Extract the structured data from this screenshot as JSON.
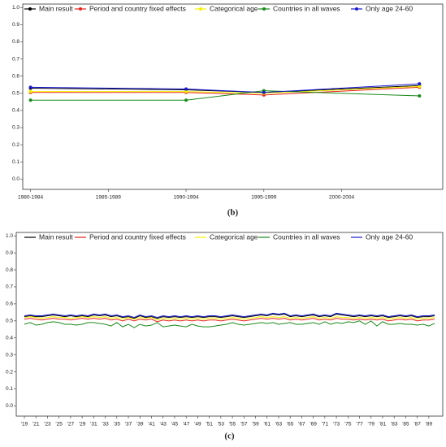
{
  "chart_data": [
    {
      "type": "line",
      "markers": true,
      "caption": "(b)",
      "x": [
        0,
        2,
        3,
        5
      ],
      "xlim": [
        -0.1,
        5.3
      ],
      "xticks": [
        {
          "value": 0,
          "label": "1980-1984"
        },
        {
          "value": 1,
          "label": "1985-1989"
        },
        {
          "value": 2,
          "label": "1990-1994"
        },
        {
          "value": 3,
          "label": "1995-1999"
        },
        {
          "value": 4,
          "label": "2000-2004"
        }
      ],
      "ylim": [
        -0.06,
        1.02
      ],
      "yticks": [
        {
          "value": 0,
          "label": "0.0"
        },
        0.1,
        0.2,
        0.3,
        0.4,
        0.5,
        0.6,
        0.7,
        0.8,
        0.9,
        {
          "value": 1,
          "label": "1.0"
        }
      ],
      "series": [
        {
          "name": "Main result",
          "color": "#000000",
          "values": [
            0.53,
            0.52,
            0.505,
            0.545
          ]
        },
        {
          "name": "Period and country fixed effects",
          "color": "#e8221c",
          "values": [
            0.505,
            0.505,
            0.49,
            0.535
          ]
        },
        {
          "name": "Categorical age",
          "color": "#f2f200",
          "values": [
            0.51,
            0.51,
            0.5,
            0.54
          ]
        },
        {
          "name": "Countries in all waves",
          "color": "#1a8a1a",
          "values": [
            0.46,
            0.46,
            0.515,
            0.485
          ]
        },
        {
          "name": "Only age 24-60",
          "color": "#1a1ad0",
          "values": [
            0.535,
            0.525,
            0.505,
            0.555
          ]
        }
      ]
    },
    {
      "type": "line",
      "markers": false,
      "caption": "(c)",
      "categories": [
        "'19",
        null,
        "'21",
        null,
        "'23",
        null,
        "'25",
        null,
        "'27",
        null,
        "'29",
        null,
        "'31",
        null,
        "'33",
        null,
        "'35",
        null,
        "'37",
        null,
        "'39",
        null,
        "'41",
        null,
        "'43",
        null,
        "'45",
        null,
        "'47",
        null,
        "'49",
        null,
        "'51",
        null,
        "'53",
        null,
        "'55",
        null,
        "'57",
        null,
        "'59",
        null,
        "'61",
        null,
        "'63",
        null,
        "'65",
        null,
        "'67",
        null,
        "'69",
        null,
        "'71",
        null,
        "'73",
        null,
        "'75",
        null,
        "'77",
        null,
        "'79",
        null,
        "'81",
        null,
        "'83",
        null,
        "'85",
        null,
        "'87",
        null,
        "'89",
        null
      ],
      "ylim": [
        -0.06,
        1.02
      ],
      "yticks": [
        {
          "value": 0,
          "label": "0.0"
        },
        0.1,
        0.2,
        0.3,
        0.4,
        0.5,
        0.6,
        0.7,
        0.8,
        0.9,
        {
          "value": 1,
          "label": "1.0"
        }
      ],
      "series": [
        {
          "name": "Main result",
          "color": "#000000",
          "values": [
            0.525,
            0.53,
            0.525,
            0.525,
            0.53,
            0.535,
            0.53,
            0.525,
            0.53,
            0.525,
            0.53,
            0.525,
            0.535,
            0.53,
            0.535,
            0.525,
            0.53,
            0.52,
            0.525,
            0.515,
            0.53,
            0.52,
            0.525,
            0.515,
            0.525,
            0.52,
            0.525,
            0.52,
            0.525,
            0.52,
            0.525,
            0.52,
            0.525,
            0.525,
            0.52,
            0.525,
            0.53,
            0.525,
            0.52,
            0.525,
            0.53,
            0.535,
            0.53,
            0.54,
            0.535,
            0.54,
            0.525,
            0.53,
            0.525,
            0.53,
            0.535,
            0.525,
            0.53,
            0.525,
            0.54,
            0.535,
            0.53,
            0.525,
            0.53,
            0.525,
            0.53,
            0.525,
            0.53,
            0.52,
            0.525,
            0.53,
            0.525,
            0.53,
            0.52,
            0.525,
            0.525,
            0.53
          ]
        },
        {
          "name": "Period and country fixed effects",
          "color": "#e8221c",
          "values": [
            0.51,
            0.515,
            0.51,
            0.505,
            0.51,
            0.515,
            0.51,
            0.51,
            0.505,
            0.51,
            0.515,
            0.51,
            0.515,
            0.51,
            0.515,
            0.505,
            0.51,
            0.5,
            0.51,
            0.5,
            0.51,
            0.505,
            0.51,
            0.495,
            0.505,
            0.5,
            0.505,
            0.5,
            0.505,
            0.5,
            0.505,
            0.5,
            0.505,
            0.505,
            0.5,
            0.505,
            0.51,
            0.505,
            0.5,
            0.505,
            0.51,
            0.515,
            0.51,
            0.515,
            0.51,
            0.515,
            0.505,
            0.51,
            0.505,
            0.51,
            0.515,
            0.505,
            0.51,
            0.505,
            0.515,
            0.51,
            0.51,
            0.505,
            0.51,
            0.505,
            0.51,
            0.505,
            0.51,
            0.5,
            0.505,
            0.51,
            0.505,
            0.51,
            0.5,
            0.505,
            0.505,
            0.51
          ]
        },
        {
          "name": "Categorical age",
          "color": "#f2f200",
          "values": [
            0.52,
            0.525,
            0.52,
            0.515,
            0.52,
            0.525,
            0.52,
            0.52,
            0.515,
            0.52,
            0.525,
            0.52,
            0.525,
            0.52,
            0.525,
            0.515,
            0.52,
            0.51,
            0.52,
            0.51,
            0.52,
            0.515,
            0.52,
            0.505,
            0.515,
            0.51,
            0.515,
            0.51,
            0.515,
            0.51,
            0.515,
            0.51,
            0.515,
            0.515,
            0.51,
            0.515,
            0.52,
            0.515,
            0.51,
            0.515,
            0.52,
            0.525,
            0.52,
            0.525,
            0.52,
            0.525,
            0.515,
            0.52,
            0.515,
            0.52,
            0.525,
            0.515,
            0.52,
            0.515,
            0.525,
            0.52,
            0.52,
            0.515,
            0.52,
            0.515,
            0.52,
            0.515,
            0.52,
            0.51,
            0.515,
            0.52,
            0.515,
            0.52,
            0.51,
            0.515,
            0.515,
            0.52
          ]
        },
        {
          "name": "Countries in all waves",
          "color": "#1a8a1a",
          "values": [
            0.48,
            0.49,
            0.475,
            0.48,
            0.49,
            0.495,
            0.49,
            0.48,
            0.48,
            0.475,
            0.48,
            0.49,
            0.49,
            0.485,
            0.48,
            0.47,
            0.49,
            0.465,
            0.48,
            0.46,
            0.48,
            0.47,
            0.475,
            0.49,
            0.465,
            0.47,
            0.475,
            0.47,
            0.465,
            0.48,
            0.47,
            0.465,
            0.465,
            0.47,
            0.475,
            0.48,
            0.49,
            0.48,
            0.475,
            0.48,
            0.485,
            0.49,
            0.485,
            0.49,
            0.48,
            0.485,
            0.49,
            0.48,
            0.48,
            0.485,
            0.49,
            0.48,
            0.495,
            0.48,
            0.49,
            0.485,
            0.495,
            0.49,
            0.5,
            0.48,
            0.5,
            0.47,
            0.495,
            0.48,
            0.48,
            0.485,
            0.48,
            0.48,
            0.475,
            0.48,
            0.47,
            0.485
          ]
        },
        {
          "name": "Only age 24-60",
          "color": "#1a1ad0",
          "values": [
            0.53,
            0.535,
            0.53,
            0.53,
            0.535,
            0.54,
            0.535,
            0.53,
            0.535,
            0.53,
            0.535,
            0.53,
            0.54,
            0.535,
            0.54,
            0.53,
            0.535,
            0.525,
            0.53,
            0.52,
            0.535,
            0.525,
            0.53,
            0.52,
            0.53,
            0.525,
            0.53,
            0.525,
            0.53,
            0.525,
            0.53,
            0.525,
            0.53,
            0.53,
            0.525,
            0.53,
            0.535,
            0.53,
            0.525,
            0.53,
            0.535,
            0.54,
            0.535,
            0.545,
            0.54,
            0.545,
            0.53,
            0.535,
            0.53,
            0.535,
            0.54,
            0.53,
            0.535,
            0.53,
            0.545,
            0.54,
            0.535,
            0.53,
            0.535,
            0.53,
            0.535,
            0.53,
            0.535,
            0.525,
            0.53,
            0.535,
            0.53,
            0.535,
            0.525,
            0.53,
            0.53,
            0.535
          ]
        }
      ]
    }
  ]
}
